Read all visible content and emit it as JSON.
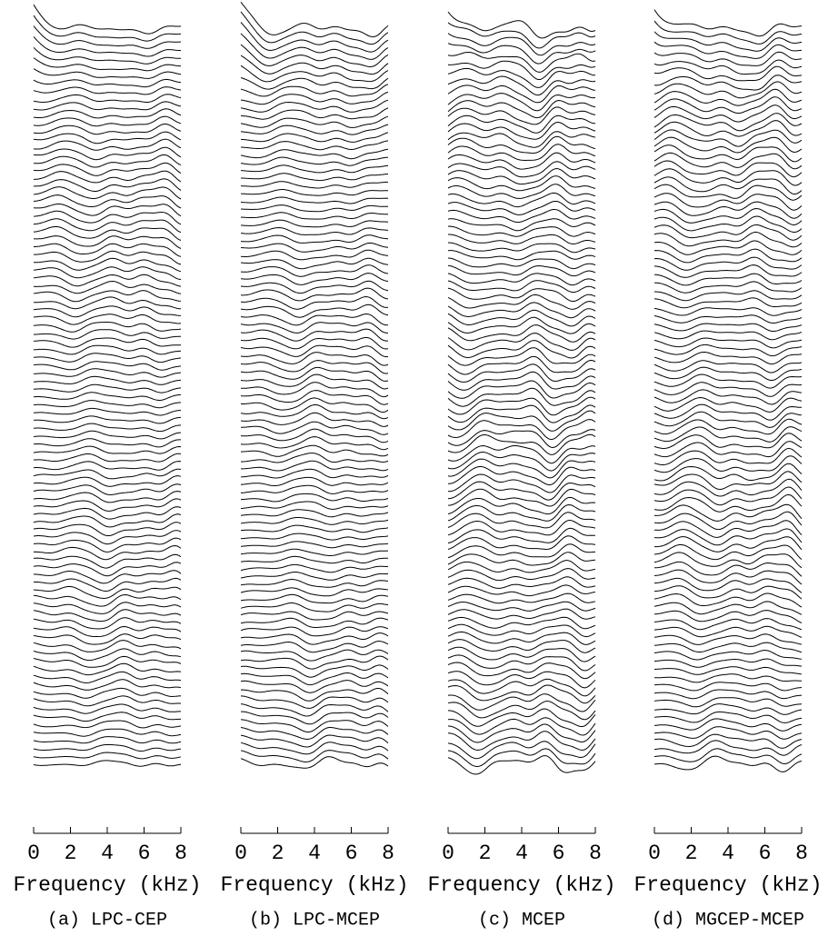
{
  "chart_data": [
    {
      "type": "waterfall",
      "xlabel": "Frequency (kHz)",
      "caption": "(a) LPC-CEP",
      "xlim": [
        0,
        8
      ],
      "xticks": [
        0,
        2,
        4,
        6,
        8
      ],
      "color": "#000000"
    },
    {
      "type": "waterfall",
      "xlabel": "Frequency (kHz)",
      "caption": "(b) LPC-MCEP",
      "xlim": [
        0,
        8
      ],
      "xticks": [
        0,
        2,
        4,
        6,
        8
      ],
      "color": "#000000"
    },
    {
      "type": "waterfall",
      "xlabel": "Frequency (kHz)",
      "caption": "(c) MCEP",
      "xlim": [
        0,
        8
      ],
      "xticks": [
        0,
        2,
        4,
        6,
        8
      ],
      "color": "#000000"
    },
    {
      "type": "waterfall",
      "xlabel": "Frequency (kHz)",
      "caption": "(d) MGCEP-MCEP",
      "xlim": [
        0,
        8
      ],
      "xticks": [
        0,
        2,
        4,
        6,
        8
      ],
      "color": "#000000"
    }
  ]
}
